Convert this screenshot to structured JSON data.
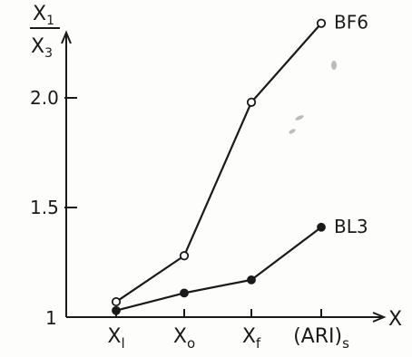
{
  "chart_data": {
    "type": "line",
    "ylabel": {
      "numerator": "X",
      "numerator_sub": "1",
      "denominator": "X",
      "denominator_sub": "3"
    },
    "xlabel": "X",
    "categories": [
      {
        "base": "X",
        "sub": "l"
      },
      {
        "base": "X",
        "sub": "o"
      },
      {
        "base": "X",
        "sub": "f"
      },
      {
        "base": "(ARI)",
        "sub": "s"
      }
    ],
    "yticks": [
      "1",
      "1.5",
      "2.0"
    ],
    "ytick_values": [
      1.0,
      1.5,
      2.0
    ],
    "ylim": [
      1.0,
      2.4
    ],
    "grid": false,
    "series": [
      {
        "name": "BF6",
        "marker": "open-circle",
        "values": [
          1.07,
          1.28,
          1.98,
          2.34
        ]
      },
      {
        "name": "BL3",
        "marker": "filled-circle",
        "values": [
          1.03,
          1.11,
          1.17,
          1.41
        ]
      }
    ],
    "line_color": "#1a1a1a",
    "background_color": "#fdfdfb"
  }
}
